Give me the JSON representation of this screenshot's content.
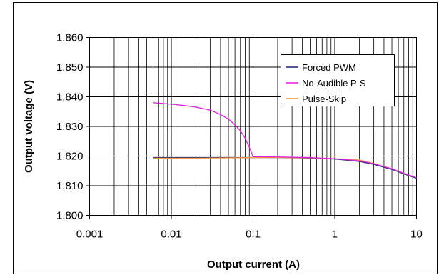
{
  "chart_data": {
    "type": "line",
    "xlabel": "Output current (A)",
    "ylabel": "Output voltage (V)",
    "x_scale": "log",
    "xlim": [
      0.001,
      10
    ],
    "ylim": [
      1.8,
      1.86
    ],
    "x_ticks": [
      "0.001",
      "0.01",
      "0.1",
      "1",
      "10"
    ],
    "y_ticks": [
      "1.800",
      "1.810",
      "1.820",
      "1.830",
      "1.840",
      "1.850",
      "1.860"
    ],
    "grid": true,
    "legend_position": "top-right",
    "series": [
      {
        "name": "Forced PWM",
        "color": "#1f1f7a",
        "x": [
          0.006,
          0.01,
          0.02,
          0.05,
          0.1,
          0.2,
          0.5,
          1,
          2,
          3,
          5,
          7,
          10
        ],
        "y": [
          1.8195,
          1.8195,
          1.8195,
          1.8195,
          1.8195,
          1.8195,
          1.8193,
          1.819,
          1.8182,
          1.8172,
          1.8155,
          1.814,
          1.8125
        ]
      },
      {
        "name": "No-Audible P-S",
        "color": "#e020e0",
        "x": [
          0.006,
          0.01,
          0.015,
          0.02,
          0.03,
          0.04,
          0.05,
          0.06,
          0.07,
          0.08,
          0.09,
          0.1,
          0.2,
          0.5,
          1,
          2,
          3,
          5,
          7,
          10
        ],
        "y": [
          1.838,
          1.8375,
          1.837,
          1.8365,
          1.8355,
          1.834,
          1.8325,
          1.8305,
          1.8285,
          1.826,
          1.823,
          1.8198,
          1.8197,
          1.8195,
          1.8191,
          1.8184,
          1.8174,
          1.8157,
          1.8142,
          1.8127
        ]
      },
      {
        "name": "Pulse-Skip",
        "color": "#f39a3c",
        "x": [
          0.006,
          0.01,
          0.02,
          0.05,
          0.1,
          0.2,
          0.5,
          1,
          2,
          3,
          5,
          7,
          10
        ],
        "y": [
          1.8193,
          1.8193,
          1.8193,
          1.8194,
          1.8195,
          1.8195,
          1.8194,
          1.8191,
          1.8187,
          1.8175,
          1.8157,
          1.8142,
          1.8127
        ]
      }
    ]
  }
}
